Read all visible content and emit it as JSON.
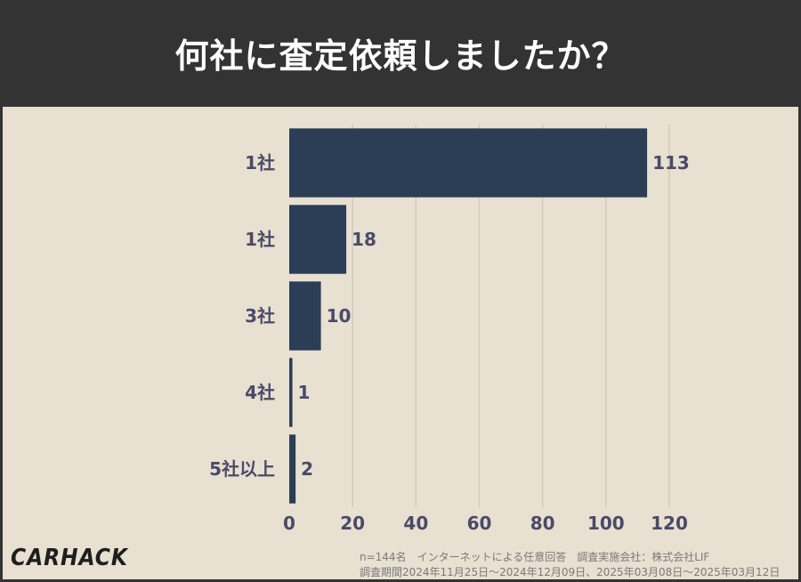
{
  "header": {
    "title": "何社に査定依頼しましたか？"
  },
  "footer": {
    "logo": "CARHACK",
    "note1": "n=144名　インターネットによる任意回答　調査実施会社：株式会社LIF",
    "note2": "調査期間2024年11月25日〜2024年12月09日、2025年03月08日〜2025年03月12日"
  },
  "chart_data": {
    "type": "bar",
    "orientation": "horizontal",
    "title": "何社に査定依頼しましたか？",
    "categories": [
      "1社",
      "1社",
      "3社",
      "4社",
      "5社以上"
    ],
    "values": [
      113,
      18,
      10,
      1,
      2
    ],
    "xlim": [
      0,
      120
    ],
    "xticks": [
      0,
      20,
      40,
      60,
      80,
      100,
      120
    ],
    "grid": true,
    "bar_color": "#2c3e55",
    "label_color": "#4a4a68"
  }
}
